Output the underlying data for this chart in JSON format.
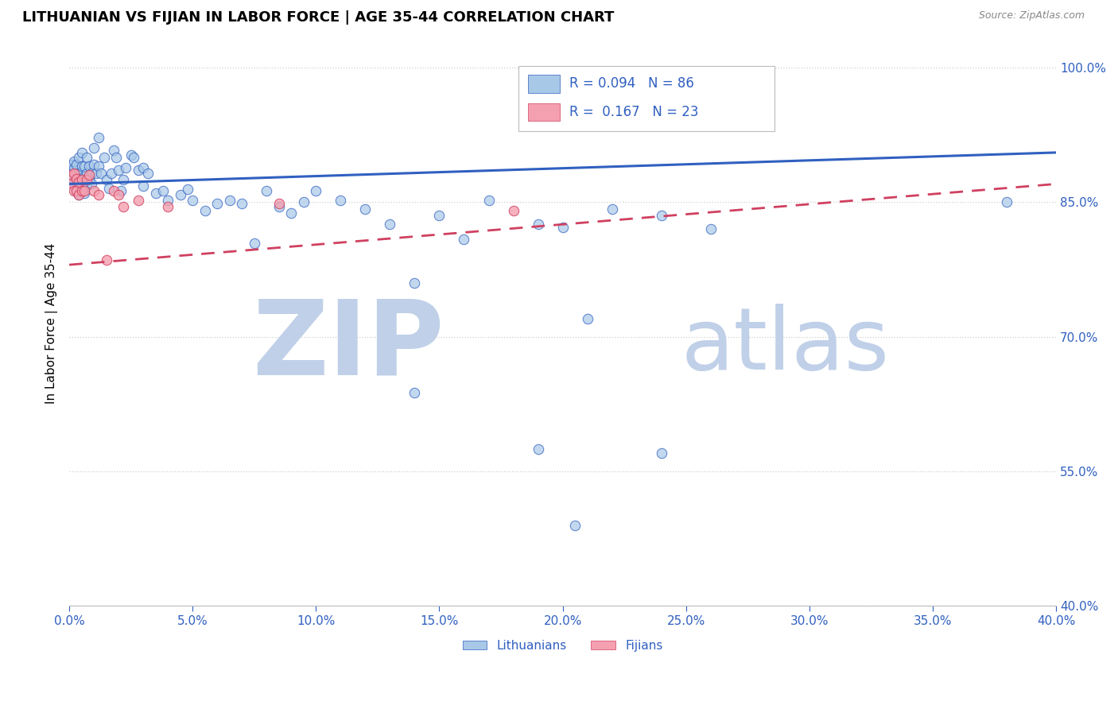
{
  "title": "LITHUANIAN VS FIJIAN IN LABOR FORCE | AGE 35-44 CORRELATION CHART",
  "source_text": "Source: ZipAtlas.com",
  "ylabel": "In Labor Force | Age 35-44",
  "xlim": [
    0.0,
    0.4
  ],
  "ylim": [
    0.4,
    1.03
  ],
  "xticks": [
    0.0,
    0.05,
    0.1,
    0.15,
    0.2,
    0.25,
    0.3,
    0.35,
    0.4
  ],
  "yticks_right": [
    0.4,
    0.55,
    0.7,
    0.85,
    1.0
  ],
  "ytick_labels_right": [
    "40.0%",
    "55.0%",
    "70.0%",
    "85.0%",
    "100.0%"
  ],
  "xtick_labels": [
    "0.0%",
    "5.0%",
    "10.0%",
    "15.0%",
    "20.0%",
    "25.0%",
    "30.0%",
    "35.0%",
    "40.0%"
  ],
  "R_lithuanian": 0.094,
  "N_lithuanian": 86,
  "R_fijian": 0.167,
  "N_fijian": 23,
  "color_lithuanian": "#A8C8E8",
  "color_fijian": "#F4A0B0",
  "color_trendline_lithuanian": "#3060C0",
  "color_trendline_fijian": "#D04060",
  "legend_color": "#3060C0",
  "watermark_zip": "ZIP",
  "watermark_atlas": "atlas",
  "watermark_color_zip": "#C0D0E8",
  "watermark_color_atlas": "#C0D0E8",
  "background_color": "#FFFFFF",
  "grid_color": "#D0D0D0",
  "lit_x": [
    0.001,
    0.001,
    0.001,
    0.002,
    0.002,
    0.002,
    0.002,
    0.003,
    0.003,
    0.003,
    0.003,
    0.004,
    0.004,
    0.004,
    0.004,
    0.005,
    0.005,
    0.005,
    0.005,
    0.005,
    0.006,
    0.006,
    0.006,
    0.007,
    0.007,
    0.007,
    0.008,
    0.008,
    0.009,
    0.009,
    0.01,
    0.01,
    0.011,
    0.012,
    0.012,
    0.013,
    0.014,
    0.015,
    0.016,
    0.017,
    0.018,
    0.019,
    0.02,
    0.021,
    0.022,
    0.023,
    0.025,
    0.026,
    0.028,
    0.03,
    0.03,
    0.032,
    0.035,
    0.038,
    0.04,
    0.045,
    0.048,
    0.05,
    0.055,
    0.06,
    0.065,
    0.07,
    0.075,
    0.08,
    0.085,
    0.09,
    0.095,
    0.1,
    0.11,
    0.12,
    0.13,
    0.14,
    0.15,
    0.16,
    0.17,
    0.19,
    0.2,
    0.22,
    0.24,
    0.26,
    0.14,
    0.19,
    0.21,
    0.24,
    0.205,
    0.38
  ],
  "lit_y": [
    0.88,
    0.875,
    0.892,
    0.885,
    0.87,
    0.888,
    0.895,
    0.882,
    0.875,
    0.862,
    0.892,
    0.87,
    0.858,
    0.882,
    0.9,
    0.868,
    0.876,
    0.89,
    0.862,
    0.905,
    0.89,
    0.86,
    0.878,
    0.9,
    0.868,
    0.882,
    0.89,
    0.875,
    0.882,
    0.87,
    0.892,
    0.91,
    0.882,
    0.922,
    0.89,
    0.882,
    0.9,
    0.875,
    0.865,
    0.882,
    0.908,
    0.9,
    0.885,
    0.862,
    0.875,
    0.888,
    0.902,
    0.9,
    0.885,
    0.868,
    0.888,
    0.882,
    0.86,
    0.862,
    0.852,
    0.858,
    0.864,
    0.852,
    0.84,
    0.848,
    0.852,
    0.848,
    0.804,
    0.862,
    0.845,
    0.838,
    0.85,
    0.862,
    0.852,
    0.842,
    0.825,
    0.76,
    0.835,
    0.808,
    0.852,
    0.825,
    0.822,
    0.842,
    0.835,
    0.82,
    0.638,
    0.575,
    0.72,
    0.57,
    0.49,
    0.85
  ],
  "fij_x": [
    0.001,
    0.001,
    0.002,
    0.002,
    0.003,
    0.003,
    0.004,
    0.004,
    0.005,
    0.005,
    0.006,
    0.007,
    0.008,
    0.01,
    0.012,
    0.015,
    0.018,
    0.02,
    0.022,
    0.028,
    0.04,
    0.085,
    0.18
  ],
  "fij_y": [
    0.88,
    0.87,
    0.882,
    0.862,
    0.876,
    0.862,
    0.872,
    0.858,
    0.875,
    0.862,
    0.862,
    0.875,
    0.88,
    0.862,
    0.858,
    0.785,
    0.862,
    0.858,
    0.845,
    0.852,
    0.845,
    0.848,
    0.84
  ]
}
